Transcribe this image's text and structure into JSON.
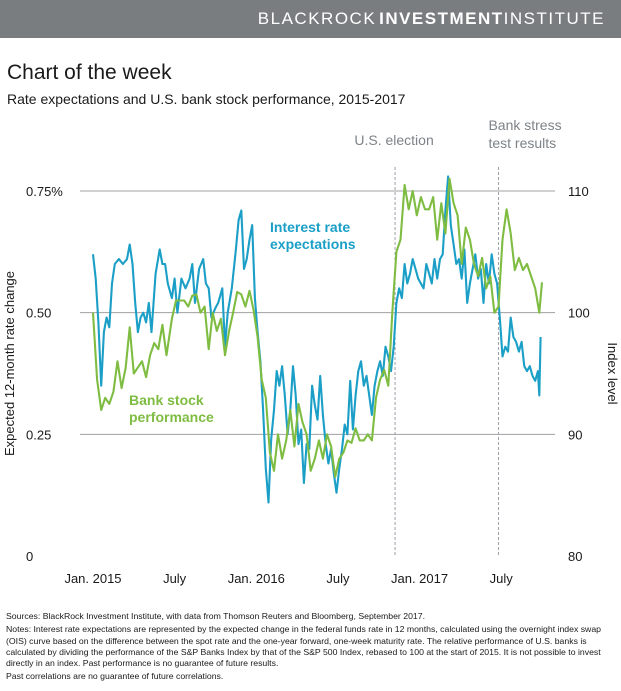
{
  "header": {
    "brand_light": "BLACKROCK",
    "brand_bold": "INVESTMENT",
    "brand_end": "INSTITUTE"
  },
  "title": "Chart of the week",
  "subtitle": "Rate expectations and U.S. bank stock performance, 2015-2017",
  "colors": {
    "rate": "#1b9fc7",
    "bank": "#7fbc42",
    "brandbar": "#7a7d80",
    "grid": "#a0a0a0",
    "event": "#9aa0a6"
  },
  "chart_data": {
    "type": "line",
    "x_unit": "months since Jan. 2015",
    "x_range": [
      0,
      33
    ],
    "x_tick_values": [
      0,
      6,
      12,
      18,
      24,
      30
    ],
    "x_tick_labels": [
      "Jan. 2015",
      "July",
      "Jan. 2016",
      "July",
      "Jan. 2017",
      "July"
    ],
    "y_left": {
      "label": "Expected 12-month rate change",
      "range": [
        0,
        0.75
      ],
      "tick_values": [
        0,
        0.25,
        0.5,
        0.75
      ],
      "tick_labels": [
        "0",
        "0.25",
        "0.50",
        "0.75%"
      ]
    },
    "y_right": {
      "label": "Index level",
      "range": [
        80,
        110
      ],
      "tick_values": [
        80,
        90,
        100,
        110
      ],
      "tick_labels": [
        "80",
        "90",
        "100",
        "110"
      ]
    },
    "events": [
      {
        "x": 22.2,
        "label_lines": [
          "U.S. election"
        ]
      },
      {
        "x": 29.8,
        "label_lines": [
          "Bank stress",
          "test results"
        ]
      }
    ],
    "annotations": [
      {
        "series": "rate",
        "lines": [
          "Interest rate",
          "expectations"
        ]
      },
      {
        "series": "bank",
        "lines": [
          "Bank stock",
          "performance"
        ]
      }
    ],
    "series": [
      {
        "name": "Interest rate expectations",
        "key": "rate",
        "axis": "left",
        "points": [
          [
            0,
            0.62
          ],
          [
            0.2,
            0.57
          ],
          [
            0.4,
            0.48
          ],
          [
            0.6,
            0.35
          ],
          [
            0.8,
            0.46
          ],
          [
            1.0,
            0.49
          ],
          [
            1.2,
            0.47
          ],
          [
            1.4,
            0.56
          ],
          [
            1.6,
            0.6
          ],
          [
            1.9,
            0.61
          ],
          [
            2.2,
            0.6
          ],
          [
            2.5,
            0.61
          ],
          [
            2.7,
            0.64
          ],
          [
            2.9,
            0.6
          ],
          [
            3.1,
            0.52
          ],
          [
            3.3,
            0.46
          ],
          [
            3.5,
            0.49
          ],
          [
            3.7,
            0.5
          ],
          [
            3.9,
            0.48
          ],
          [
            4.1,
            0.52
          ],
          [
            4.3,
            0.46
          ],
          [
            4.6,
            0.58
          ],
          [
            4.9,
            0.63
          ],
          [
            5.1,
            0.6
          ],
          [
            5.3,
            0.6
          ],
          [
            5.5,
            0.56
          ],
          [
            5.8,
            0.53
          ],
          [
            6.0,
            0.57
          ],
          [
            6.2,
            0.5
          ],
          [
            6.5,
            0.57
          ],
          [
            6.8,
            0.55
          ],
          [
            7.1,
            0.57
          ],
          [
            7.3,
            0.6
          ],
          [
            7.5,
            0.52
          ],
          [
            7.8,
            0.59
          ],
          [
            8.1,
            0.61
          ],
          [
            8.3,
            0.56
          ],
          [
            8.5,
            0.55
          ],
          [
            8.7,
            0.49
          ],
          [
            9.0,
            0.51
          ],
          [
            9.2,
            0.52
          ],
          [
            9.5,
            0.55
          ],
          [
            9.7,
            0.43
          ],
          [
            9.9,
            0.5
          ],
          [
            10.2,
            0.55
          ],
          [
            10.5,
            0.63
          ],
          [
            10.7,
            0.69
          ],
          [
            10.9,
            0.71
          ],
          [
            11.1,
            0.59
          ],
          [
            11.3,
            0.61
          ],
          [
            11.5,
            0.65
          ],
          [
            11.7,
            0.68
          ],
          [
            11.9,
            0.53
          ],
          [
            12.1,
            0.46
          ],
          [
            12.3,
            0.4
          ],
          [
            12.5,
            0.3
          ],
          [
            12.7,
            0.18
          ],
          [
            12.9,
            0.11
          ],
          [
            13.1,
            0.24
          ],
          [
            13.3,
            0.3
          ],
          [
            13.5,
            0.38
          ],
          [
            13.7,
            0.35
          ],
          [
            13.9,
            0.39
          ],
          [
            14.1,
            0.33
          ],
          [
            14.3,
            0.25
          ],
          [
            14.5,
            0.3
          ],
          [
            14.7,
            0.39
          ],
          [
            14.9,
            0.33
          ],
          [
            15.1,
            0.23
          ],
          [
            15.3,
            0.26
          ],
          [
            15.5,
            0.15
          ],
          [
            15.7,
            0.23
          ],
          [
            15.9,
            0.22
          ],
          [
            16.1,
            0.35
          ],
          [
            16.3,
            0.31
          ],
          [
            16.5,
            0.28
          ],
          [
            16.7,
            0.37
          ],
          [
            16.9,
            0.29
          ],
          [
            17.1,
            0.23
          ],
          [
            17.3,
            0.19
          ],
          [
            17.5,
            0.22
          ],
          [
            17.7,
            0.17
          ],
          [
            17.9,
            0.13
          ],
          [
            18.1,
            0.18
          ],
          [
            18.3,
            0.22
          ],
          [
            18.5,
            0.27
          ],
          [
            18.7,
            0.25
          ],
          [
            18.9,
            0.36
          ],
          [
            19.1,
            0.26
          ],
          [
            19.3,
            0.33
          ],
          [
            19.5,
            0.38
          ],
          [
            19.7,
            0.4
          ],
          [
            19.9,
            0.35
          ],
          [
            20.1,
            0.37
          ],
          [
            20.3,
            0.33
          ],
          [
            20.5,
            0.29
          ],
          [
            20.7,
            0.35
          ],
          [
            20.9,
            0.38
          ],
          [
            21.1,
            0.4
          ],
          [
            21.3,
            0.37
          ],
          [
            21.5,
            0.43
          ],
          [
            21.7,
            0.41
          ],
          [
            21.9,
            0.38
          ],
          [
            22.1,
            0.43
          ],
          [
            22.3,
            0.52
          ],
          [
            22.5,
            0.55
          ],
          [
            22.7,
            0.53
          ],
          [
            22.9,
            0.6
          ],
          [
            23.1,
            0.56
          ],
          [
            23.3,
            0.58
          ],
          [
            23.5,
            0.61
          ],
          [
            23.7,
            0.59
          ],
          [
            23.9,
            0.57
          ],
          [
            24.1,
            0.56
          ],
          [
            24.3,
            0.55
          ],
          [
            24.5,
            0.6
          ],
          [
            24.7,
            0.58
          ],
          [
            24.9,
            0.56
          ],
          [
            25.1,
            0.61
          ],
          [
            25.3,
            0.57
          ],
          [
            25.5,
            0.61
          ],
          [
            25.7,
            0.62
          ],
          [
            25.9,
            0.71
          ],
          [
            26.1,
            0.78
          ],
          [
            26.3,
            0.68
          ],
          [
            26.5,
            0.64
          ],
          [
            26.7,
            0.6
          ],
          [
            26.9,
            0.61
          ],
          [
            27.1,
            0.57
          ],
          [
            27.3,
            0.63
          ],
          [
            27.5,
            0.52
          ],
          [
            27.7,
            0.56
          ],
          [
            27.9,
            0.59
          ],
          [
            28.1,
            0.62
          ],
          [
            28.3,
            0.57
          ],
          [
            28.5,
            0.59
          ],
          [
            28.7,
            0.52
          ],
          [
            28.9,
            0.6
          ],
          [
            29.1,
            0.56
          ],
          [
            29.3,
            0.62
          ],
          [
            29.5,
            0.58
          ],
          [
            29.7,
            0.56
          ],
          [
            29.9,
            0.49
          ],
          [
            30.1,
            0.41
          ],
          [
            30.3,
            0.43
          ],
          [
            30.5,
            0.42
          ],
          [
            30.7,
            0.49
          ],
          [
            30.9,
            0.45
          ],
          [
            31.1,
            0.44
          ],
          [
            31.3,
            0.42
          ],
          [
            31.5,
            0.44
          ],
          [
            31.7,
            0.39
          ],
          [
            31.9,
            0.38
          ],
          [
            32.1,
            0.39
          ],
          [
            32.3,
            0.37
          ],
          [
            32.5,
            0.36
          ],
          [
            32.7,
            0.38
          ],
          [
            32.8,
            0.33
          ],
          [
            32.9,
            0.45
          ]
        ]
      },
      {
        "name": "Bank stock performance",
        "key": "bank",
        "axis": "right",
        "points": [
          [
            0,
            100
          ],
          [
            0.3,
            94.5
          ],
          [
            0.6,
            92
          ],
          [
            0.9,
            93
          ],
          [
            1.2,
            92.5
          ],
          [
            1.5,
            93.5
          ],
          [
            1.8,
            96
          ],
          [
            2.1,
            93.8
          ],
          [
            2.4,
            95.5
          ],
          [
            2.7,
            98.8
          ],
          [
            3.0,
            95
          ],
          [
            3.3,
            95.5
          ],
          [
            3.6,
            96
          ],
          [
            3.9,
            94.7
          ],
          [
            4.2,
            96.5
          ],
          [
            4.5,
            97.5
          ],
          [
            4.8,
            97
          ],
          [
            5.1,
            99
          ],
          [
            5.4,
            96.5
          ],
          [
            5.8,
            99.5
          ],
          [
            6.1,
            101
          ],
          [
            6.4,
            101
          ],
          [
            6.7,
            101
          ],
          [
            7.0,
            100.5
          ],
          [
            7.3,
            101.4
          ],
          [
            7.6,
            101.5
          ],
          [
            7.9,
            100
          ],
          [
            8.2,
            100.5
          ],
          [
            8.5,
            97
          ],
          [
            8.8,
            100
          ],
          [
            9.1,
            98.5
          ],
          [
            9.4,
            99.5
          ],
          [
            9.7,
            96.5
          ],
          [
            10.0,
            98.5
          ],
          [
            10.3,
            100
          ],
          [
            10.6,
            101.7
          ],
          [
            10.9,
            101.5
          ],
          [
            11.2,
            100.5
          ],
          [
            11.5,
            101.8
          ],
          [
            11.8,
            100.2
          ],
          [
            12.1,
            98
          ],
          [
            12.4,
            94.5
          ],
          [
            12.7,
            93
          ],
          [
            13.0,
            88.5
          ],
          [
            13.3,
            87
          ],
          [
            13.6,
            90
          ],
          [
            13.9,
            88
          ],
          [
            14.2,
            89.5
          ],
          [
            14.5,
            92
          ],
          [
            14.8,
            89
          ],
          [
            15.1,
            92.5
          ],
          [
            15.4,
            91
          ],
          [
            15.7,
            90
          ],
          [
            16.0,
            87
          ],
          [
            16.3,
            88
          ],
          [
            16.6,
            89.5
          ],
          [
            16.9,
            88
          ],
          [
            17.2,
            90
          ],
          [
            17.5,
            89
          ],
          [
            17.8,
            86.5
          ],
          [
            18.1,
            88
          ],
          [
            18.4,
            88.5
          ],
          [
            18.7,
            89.5
          ],
          [
            19.0,
            89.3
          ],
          [
            19.3,
            90.5
          ],
          [
            19.6,
            89.5
          ],
          [
            19.9,
            89.5
          ],
          [
            20.2,
            90
          ],
          [
            20.5,
            89.5
          ],
          [
            20.8,
            93
          ],
          [
            21.1,
            94.5
          ],
          [
            21.4,
            95.3
          ],
          [
            21.7,
            94
          ],
          [
            22.0,
            100
          ],
          [
            22.3,
            105
          ],
          [
            22.6,
            106
          ],
          [
            22.9,
            110.5
          ],
          [
            23.2,
            108.5
          ],
          [
            23.5,
            110
          ],
          [
            23.8,
            108
          ],
          [
            24.1,
            109.5
          ],
          [
            24.4,
            108.5
          ],
          [
            24.7,
            108.5
          ],
          [
            25.0,
            109.5
          ],
          [
            25.3,
            106
          ],
          [
            25.6,
            109
          ],
          [
            25.9,
            106.5
          ],
          [
            26.2,
            111
          ],
          [
            26.5,
            109
          ],
          [
            26.8,
            108
          ],
          [
            27.1,
            104
          ],
          [
            27.4,
            107
          ],
          [
            27.7,
            106
          ],
          [
            28.0,
            104
          ],
          [
            28.3,
            103
          ],
          [
            28.6,
            104.5
          ],
          [
            28.9,
            102
          ],
          [
            29.2,
            103
          ],
          [
            29.5,
            100
          ],
          [
            29.8,
            100.5
          ],
          [
            30.1,
            106
          ],
          [
            30.4,
            108.5
          ],
          [
            30.7,
            106.5
          ],
          [
            31.0,
            103.5
          ],
          [
            31.3,
            104.5
          ],
          [
            31.6,
            103.5
          ],
          [
            31.9,
            104
          ],
          [
            32.2,
            103
          ],
          [
            32.5,
            102
          ],
          [
            32.8,
            100
          ],
          [
            33.0,
            102.5
          ]
        ]
      }
    ]
  },
  "notes": {
    "sources": "Sources: BlackRock Investment Institute, with data from Thomson Reuters and Bloomberg, September 2017.",
    "notes": "Notes: Interest rate expectations are represented by the expected change in the federal funds rate in 12 months, calculated using the overnight index swap (OIS) curve based on the difference between the spot rate and the one-year forward, one-week maturity rate. The relative performance of U.S. banks is calculated by dividing the performance of the S&P Banks Index by that of the S&P 500 Index, rebased to 100 at the start of 2015. It is not possible to invest directly in an index. Past performance is no guarantee of future results.",
    "disclaimer": "Past correlations are no guarantee of future correlations."
  }
}
